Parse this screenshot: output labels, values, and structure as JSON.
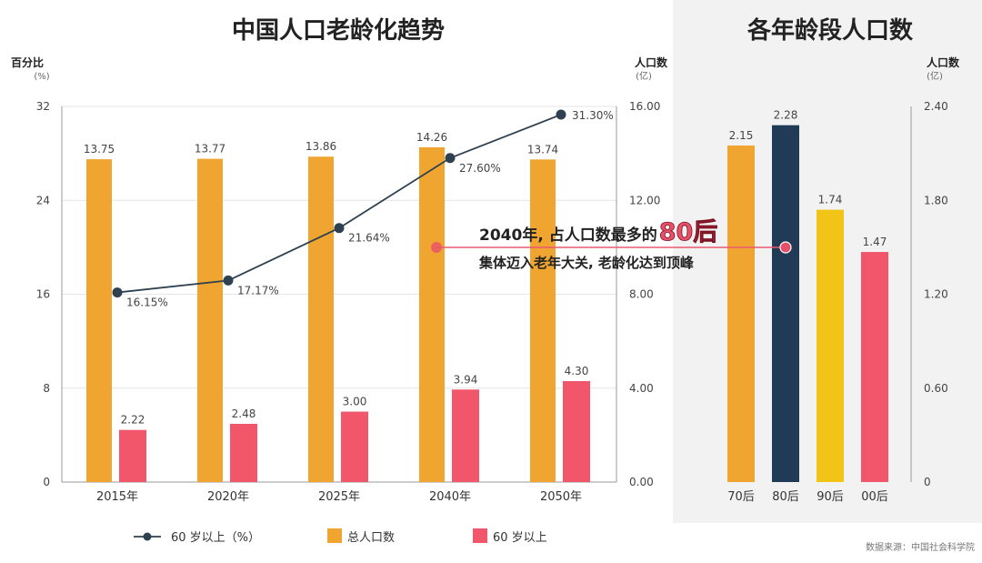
{
  "colors": {
    "orange": "#F0A530",
    "pink": "#F2566B",
    "navy": "#213B57",
    "yellow": "#F2C418",
    "line": "#2E4150",
    "grid": "#E6E6E6",
    "right_panel_bg": "#F2F2F2",
    "annotation_line": "#E95A70",
    "annotation_dot": "#E8506A"
  },
  "chart_data": [
    {
      "type": "bar+line",
      "title": "中国人口老龄化趋势",
      "categories": [
        "2015年",
        "2020年",
        "2025年",
        "2040年",
        "2050年"
      ],
      "left_axis": {
        "label": "百分比",
        "unit": "(%)",
        "ticks": [
          "0",
          "8",
          "16",
          "24",
          "32"
        ],
        "range": [
          0,
          32
        ]
      },
      "right_axis": {
        "label": "人口数",
        "unit": "(亿)",
        "ticks": [
          "0.00",
          "4.00",
          "8.00",
          "12.00",
          "16.00"
        ],
        "range": [
          0,
          16
        ]
      },
      "series": [
        {
          "name": "总人口数",
          "kind": "bar",
          "color_key": "orange",
          "values": [
            13.75,
            13.77,
            13.86,
            14.26,
            13.74
          ],
          "labels": [
            "13.75",
            "13.77",
            "13.86",
            "14.26",
            "13.74"
          ]
        },
        {
          "name": "60 岁以上",
          "kind": "bar",
          "color_key": "pink",
          "values": [
            2.22,
            2.48,
            3.0,
            3.94,
            4.3
          ],
          "labels": [
            "2.22",
            "2.48",
            "3.00",
            "3.94",
            "4.30"
          ]
        },
        {
          "name": "60 岁以上（%）",
          "kind": "line",
          "color_key": "line",
          "values": [
            16.15,
            17.17,
            21.64,
            27.6,
            31.3
          ],
          "labels": [
            "16.15%",
            "17.17%",
            "21.64%",
            "27.60%",
            "31.30%"
          ]
        }
      ],
      "legend": [
        {
          "label": "60 岁以上（%）",
          "kind": "line",
          "color_key": "line"
        },
        {
          "label": "总人口数",
          "kind": "bar",
          "color_key": "orange"
        },
        {
          "label": "60 岁以上",
          "kind": "bar",
          "color_key": "pink"
        }
      ],
      "legend_position": "bottom"
    },
    {
      "type": "bar",
      "title": "各年龄段人口数",
      "categories": [
        "70后",
        "80后",
        "90后",
        "00后"
      ],
      "values": [
        2.15,
        2.28,
        1.74,
        1.47
      ],
      "labels": [
        "2.15",
        "2.28",
        "1.74",
        "1.47"
      ],
      "color_keys": [
        "orange",
        "navy",
        "yellow",
        "pink"
      ],
      "right_axis": {
        "label": "人口数",
        "unit": "(亿)",
        "ticks": [
          "0",
          "0.60",
          "1.20",
          "1.80",
          "2.40"
        ],
        "range": [
          0,
          2.4
        ]
      }
    }
  ],
  "annotation": {
    "line1_prefix": "2040年, 占人口数最多的",
    "line1_highlight": "80后",
    "line2": "集体迈入老年大关, 老龄化达到顶峰"
  },
  "source_note": "数据来源：中国社会科学院"
}
